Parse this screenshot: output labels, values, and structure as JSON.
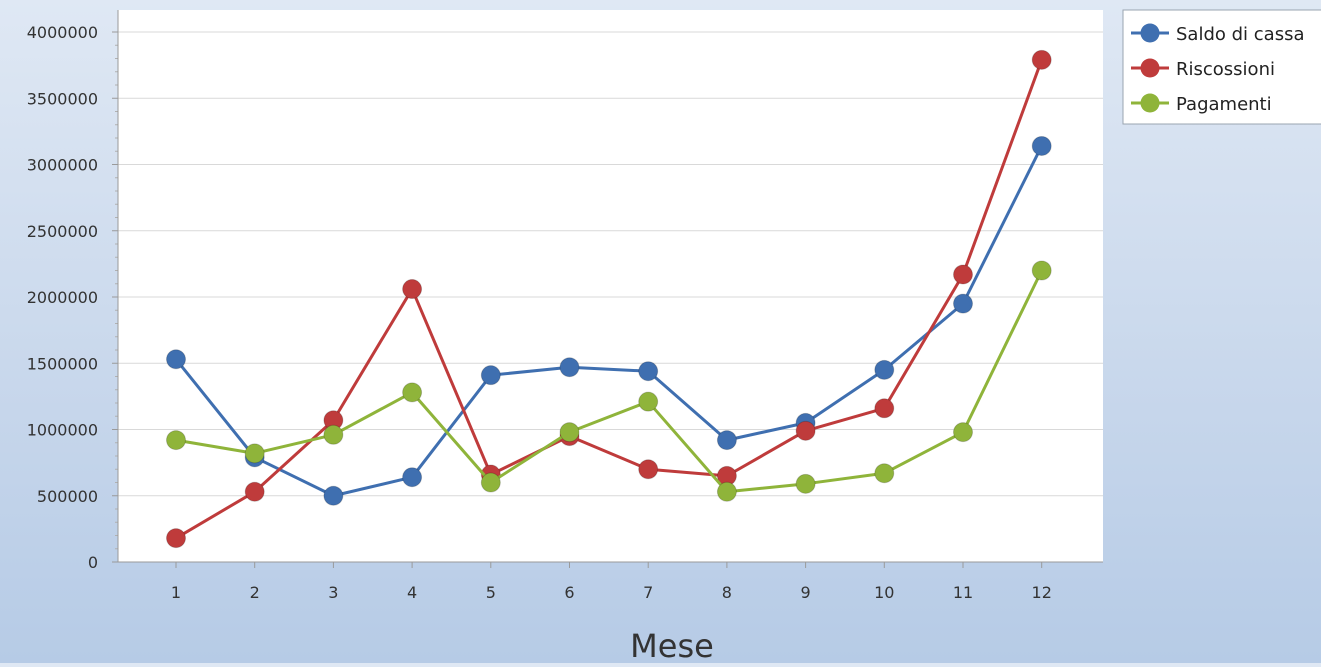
{
  "chart_data": {
    "type": "line",
    "title": "",
    "xlabel": "Mese",
    "ylabel": "",
    "categories": [
      "1",
      "2",
      "3",
      "4",
      "5",
      "6",
      "7",
      "8",
      "9",
      "10",
      "11",
      "12"
    ],
    "ylim": [
      0,
      4000000
    ],
    "yticks": [
      "0",
      "500000",
      "1000000",
      "1500000",
      "2000000",
      "2500000",
      "3000000",
      "3500000",
      "4000000"
    ],
    "grid": true,
    "legend_position": "top-right",
    "series": [
      {
        "name": "Saldo di cassa",
        "color": "#3f6fb0",
        "values": [
          1530000,
          790000,
          500000,
          640000,
          1410000,
          1470000,
          1440000,
          920000,
          1050000,
          1450000,
          1950000,
          3140000
        ]
      },
      {
        "name": "Riscossioni",
        "color": "#bf3b3b",
        "values": [
          180000,
          530000,
          1070000,
          2060000,
          660000,
          950000,
          700000,
          650000,
          990000,
          1160000,
          2170000,
          3790000
        ]
      },
      {
        "name": "Pagamenti",
        "color": "#8fb43a",
        "values": [
          920000,
          820000,
          960000,
          1280000,
          600000,
          980000,
          1210000,
          530000,
          590000,
          670000,
          980000,
          2200000
        ]
      }
    ]
  }
}
